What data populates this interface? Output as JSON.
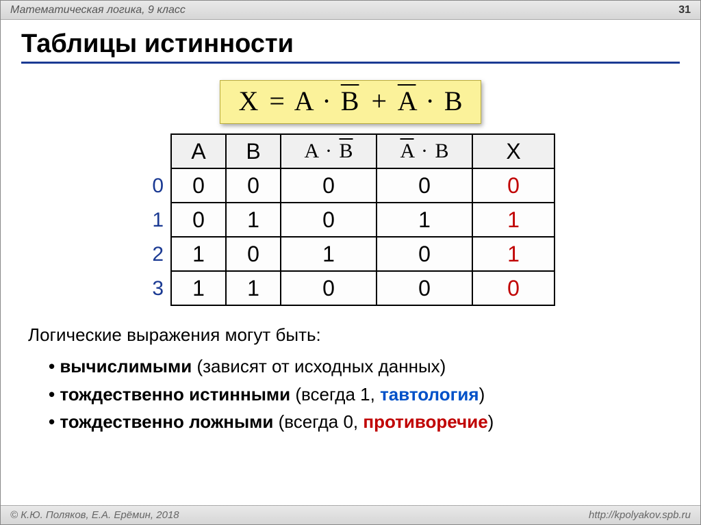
{
  "page": {
    "header_left": "Математическая логика, 9 класс",
    "page_number": "31",
    "footer_left": "© К.Ю. Поляков, Е.А. Ерёмин, 2018",
    "footer_right": "http://kpolyakov.spb.ru"
  },
  "title": "Таблицы истинности",
  "formula": {
    "lhs": "X",
    "eq": "=",
    "t1a": "A",
    "t1dot": "·",
    "t1b": "B",
    "t1b_over": true,
    "plus": "+",
    "t2a": "A",
    "t2a_over": true,
    "t2dot": "·",
    "t2b": "B",
    "bg_color": "#fbf29a",
    "border_color": "#bcae3d",
    "fontsize": 40
  },
  "truth_table": {
    "row_indices": [
      "0",
      "1",
      "2",
      "3"
    ],
    "row_index_color": "#1b3a93",
    "columns": [
      {
        "key": "A",
        "label_plain": "A",
        "width": 80,
        "type": "plain"
      },
      {
        "key": "B",
        "label_plain": "B",
        "width": 80,
        "type": "plain"
      },
      {
        "key": "E1",
        "width": 140,
        "type": "expr",
        "a": "A",
        "dot": "·",
        "b": "B",
        "b_over": true
      },
      {
        "key": "E2",
        "width": 140,
        "type": "expr",
        "a": "A",
        "a_over": true,
        "dot": "·",
        "b": "B"
      },
      {
        "key": "X",
        "label_plain": "X",
        "width": 120,
        "type": "plain"
      }
    ],
    "rows": [
      {
        "A": "0",
        "B": "0",
        "E1": "0",
        "E2": "0",
        "X": "0"
      },
      {
        "A": "0",
        "B": "1",
        "E1": "0",
        "E2": "1",
        "X": "1"
      },
      {
        "A": "1",
        "B": "0",
        "E1": "1",
        "E2": "0",
        "X": "1"
      },
      {
        "A": "1",
        "B": "1",
        "E1": "0",
        "E2": "0",
        "X": "0"
      }
    ],
    "x_colors": [
      "#c00000",
      "#c00000",
      "#c00000",
      "#c00000"
    ],
    "header_bg": "#f0f0f0",
    "cell_bg": "#fdfdfd",
    "border_color": "#000000",
    "fontsize": 32
  },
  "notes": {
    "intro": "Логические выражения могут быть:",
    "items": [
      {
        "bold": "вычислимыми",
        "rest": " (зависят от исходных данных)"
      },
      {
        "bold": "тождественно истинными",
        "rest_pre": " (всегда 1, ",
        "keyword": "тавтология",
        "keyword_color": "blue",
        "rest_post": ")"
      },
      {
        "bold": "тождественно ложными",
        "rest_pre": " (всегда 0, ",
        "keyword": "противоречие",
        "keyword_color": "red",
        "rest_post": ")"
      }
    ]
  },
  "colors": {
    "title_underline": "#1b3a93",
    "blue_keyword": "#0050c8",
    "red_keyword": "#c00000",
    "header_gradient_top": "#e9e9e9",
    "header_gradient_bottom": "#d6d6d6"
  }
}
